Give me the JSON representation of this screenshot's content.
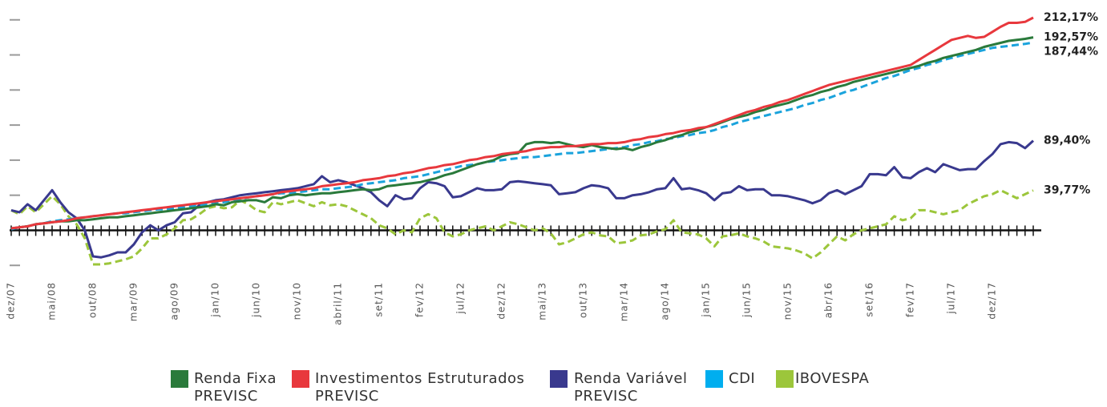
{
  "chart_data": {
    "type": "line",
    "categories": [
      "dez/07",
      null,
      null,
      null,
      null,
      "mai/08",
      null,
      null,
      null,
      null,
      "out/08",
      null,
      null,
      null,
      null,
      "mar/09",
      null,
      null,
      null,
      null,
      "ago/09",
      null,
      null,
      null,
      null,
      "jan/10",
      null,
      null,
      null,
      null,
      "jun/10",
      null,
      null,
      null,
      null,
      "nov/10",
      null,
      null,
      null,
      null,
      "abril/11",
      null,
      null,
      null,
      null,
      "set/11",
      null,
      null,
      null,
      null,
      "fev/12",
      null,
      null,
      null,
      null,
      "jul/12",
      null,
      null,
      null,
      null,
      "dez/12",
      null,
      null,
      null,
      null,
      "mai/13",
      null,
      null,
      null,
      null,
      "out/13",
      null,
      null,
      null,
      null,
      "mar/14",
      null,
      null,
      null,
      null,
      "ago/14",
      null,
      null,
      null,
      null,
      "jan/15",
      null,
      null,
      null,
      null,
      "jun/15",
      null,
      null,
      null,
      null,
      "nov/15",
      null,
      null,
      null,
      null,
      "abr/16",
      null,
      null,
      null,
      null,
      "set/16",
      null,
      null,
      null,
      null,
      "fev/17",
      null,
      null,
      null,
      null,
      "jul/17",
      null,
      null,
      null,
      null,
      "dez/17",
      null,
      null,
      null,
      null,
      null
    ],
    "series": [
      {
        "name": "Renda Fixa PREVISC",
        "color": "#2a7a3b",
        "dash": false,
        "end_label": "192,57%",
        "values": [
          2,
          3,
          4,
          6,
          7,
          8,
          9,
          9,
          10,
          10,
          11,
          12,
          13,
          13,
          14,
          15,
          16,
          17,
          18,
          19,
          20,
          21,
          22,
          23,
          24,
          26,
          25,
          28,
          29,
          30,
          30,
          28,
          33,
          32,
          35,
          36,
          35,
          36,
          37,
          37,
          38,
          39,
          40,
          41,
          40,
          41,
          44,
          45,
          46,
          47,
          48,
          50,
          52,
          55,
          57,
          60,
          63,
          66,
          68,
          70,
          74,
          76,
          77,
          86,
          88,
          88,
          87,
          88,
          86,
          84,
          83,
          85,
          83,
          82,
          81,
          82,
          80,
          83,
          85,
          88,
          90,
          93,
          95,
          98,
          100,
          103,
          105,
          108,
          111,
          113,
          115,
          118,
          120,
          123,
          125,
          127,
          130,
          133,
          135,
          138,
          140,
          143,
          145,
          148,
          150,
          152,
          154,
          156,
          158,
          160,
          162,
          164,
          167,
          169,
          172,
          174,
          176,
          178,
          180,
          183,
          185,
          187,
          189,
          190,
          191,
          192.57
        ]
      },
      {
        "name": "Investimentos Estruturados PREVISC",
        "color": "#e8383d",
        "dash": false,
        "end_label": "212,17%",
        "values": [
          2,
          3,
          4,
          6,
          7,
          8,
          9,
          10,
          12,
          13,
          14,
          15,
          16,
          17,
          18,
          19,
          20,
          21,
          22,
          23,
          24,
          25,
          26,
          27,
          28,
          29,
          30,
          31,
          32,
          33,
          34,
          35,
          36,
          38,
          39,
          40,
          41,
          42,
          44,
          45,
          46,
          47,
          48,
          50,
          51,
          52,
          54,
          55,
          57,
          58,
          60,
          62,
          63,
          65,
          66,
          68,
          70,
          71,
          73,
          74,
          76,
          77,
          78,
          79,
          81,
          82,
          83,
          83,
          84,
          84,
          85,
          86,
          86,
          87,
          87,
          88,
          90,
          91,
          93,
          94,
          96,
          97,
          99,
          100,
          102,
          103,
          106,
          109,
          112,
          115,
          118,
          120,
          123,
          125,
          128,
          130,
          133,
          136,
          139,
          142,
          145,
          147,
          149,
          151,
          153,
          155,
          157,
          159,
          161,
          163,
          165,
          170,
          175,
          180,
          185,
          190,
          192,
          194,
          192,
          193,
          198,
          203,
          207,
          207,
          208,
          212.17
        ]
      },
      {
        "name": "Renda Variável PREVISC",
        "color": "#39398e",
        "dash": false,
        "end_label": "89,40%",
        "values": [
          20,
          18,
          26,
          20,
          30,
          40,
          28,
          18,
          12,
          0,
          -26,
          -27,
          -25,
          -22,
          -22,
          -14,
          -2,
          5,
          0,
          5,
          8,
          17,
          18,
          25,
          28,
          30,
          31,
          33,
          35,
          36,
          37,
          38,
          39,
          40,
          41,
          42,
          44,
          46,
          54,
          48,
          50,
          48,
          45,
          42,
          38,
          30,
          24,
          35,
          31,
          32,
          42,
          48,
          47,
          44,
          33,
          34,
          38,
          42,
          40,
          40,
          41,
          48,
          49,
          48,
          47,
          46,
          45,
          36,
          37,
          38,
          42,
          45,
          44,
          42,
          32,
          32,
          35,
          36,
          38,
          41,
          42,
          52,
          41,
          42,
          40,
          37,
          30,
          37,
          38,
          44,
          40,
          41,
          41,
          35,
          35,
          34,
          32,
          30,
          27,
          30,
          37,
          40,
          36,
          40,
          44,
          56,
          56,
          55,
          63,
          53,
          52,
          58,
          62,
          58,
          66,
          63,
          60,
          61,
          61,
          69,
          76,
          86,
          88,
          87,
          82,
          89.4
        ]
      },
      {
        "name": "CDI",
        "color": "#1aa3dc",
        "dash": true,
        "end_label": "187,44%",
        "values": [
          1,
          3,
          4,
          6,
          7,
          9,
          10,
          11,
          12,
          13,
          14,
          15,
          16,
          17,
          17,
          18,
          19,
          20,
          21,
          21,
          22,
          23,
          24,
          25,
          26,
          27,
          28,
          30,
          31,
          33,
          34,
          35,
          36,
          37,
          37,
          38,
          39,
          40,
          41,
          41,
          42,
          43,
          44,
          46,
          47,
          48,
          49,
          50,
          52,
          53,
          54,
          56,
          58,
          60,
          62,
          64,
          65,
          66,
          68,
          69,
          70,
          71,
          72,
          73,
          73,
          74,
          75,
          76,
          77,
          77,
          78,
          79,
          80,
          81,
          82,
          83,
          85,
          86,
          88,
          89,
          91,
          92,
          94,
          95,
          97,
          98,
          100,
          103,
          105,
          108,
          110,
          112,
          114,
          116,
          118,
          120,
          122,
          125,
          127,
          130,
          132,
          135,
          138,
          140,
          143,
          146,
          149,
          152,
          154,
          157,
          160,
          162,
          165,
          167,
          170,
          172,
          174,
          176,
          178,
          180,
          182,
          183,
          184,
          185,
          186,
          187.44
        ]
      },
      {
        "name": "IBOVESPA",
        "color": "#9cc63b",
        "dash": true,
        "end_label": "39,77%",
        "values": [
          20,
          16,
          24,
          18,
          26,
          34,
          26,
          14,
          6,
          -8,
          -34,
          -34,
          -33,
          -31,
          -29,
          -26,
          -18,
          -8,
          -8,
          -4,
          2,
          10,
          11,
          16,
          22,
          24,
          22,
          23,
          30,
          26,
          20,
          18,
          28,
          26,
          28,
          30,
          27,
          24,
          28,
          25,
          26,
          24,
          20,
          16,
          12,
          5,
          2,
          -4,
          0,
          -2,
          12,
          16,
          12,
          -2,
          -6,
          -4,
          0,
          2,
          4,
          0,
          4,
          8,
          6,
          3,
          0,
          2,
          -3,
          -14,
          -12,
          -8,
          -4,
          -2,
          -5,
          -6,
          -13,
          -12,
          -10,
          -5,
          -4,
          -1,
          1,
          10,
          -2,
          -3,
          -4,
          -8,
          -16,
          -6,
          -5,
          -3,
          -6,
          -8,
          -11,
          -16,
          -17,
          -18,
          -20,
          -23,
          -28,
          -22,
          -14,
          -6,
          -10,
          -4,
          0,
          2,
          4,
          6,
          14,
          10,
          12,
          20,
          20,
          18,
          16,
          18,
          20,
          26,
          30,
          34,
          36,
          40,
          36,
          32,
          36,
          39.77
        ]
      }
    ],
    "ylim": [
      -50,
      225
    ],
    "yticks": [
      -35,
      0,
      35,
      70,
      105,
      140,
      175,
      210
    ]
  }
}
